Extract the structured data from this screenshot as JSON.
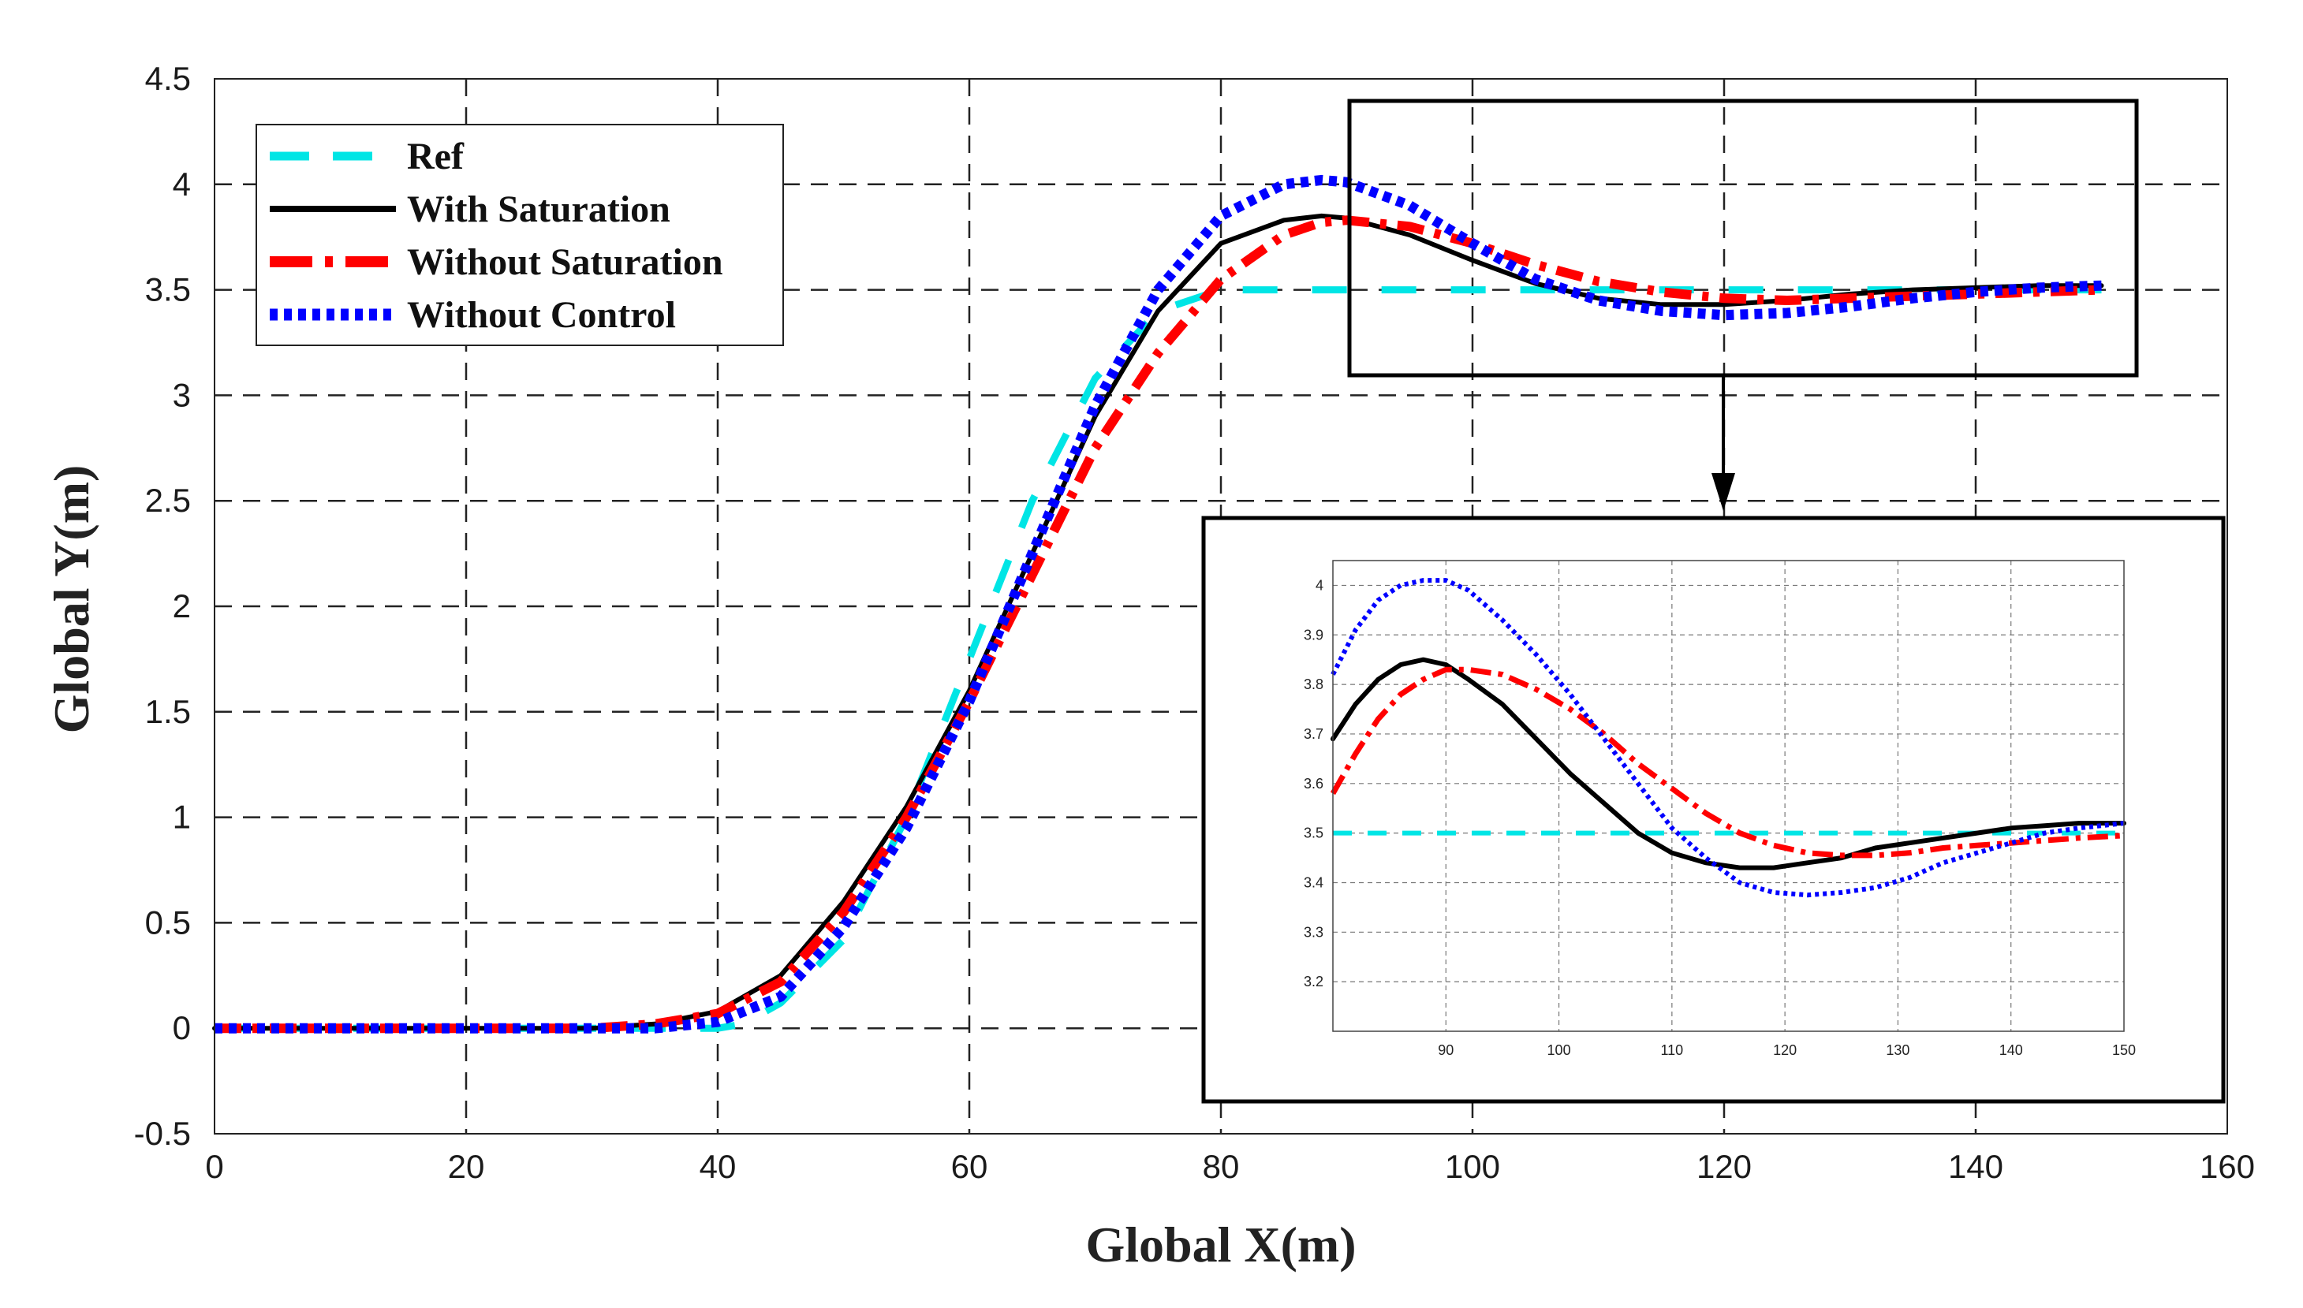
{
  "chart_data": [
    {
      "type": "line",
      "title": "",
      "xlabel": "Global X(m)",
      "ylabel": "Global Y(m)",
      "xlim": [
        0,
        160
      ],
      "ylim": [
        -0.5,
        4.5
      ],
      "xticks": [
        0,
        20,
        40,
        60,
        80,
        100,
        120,
        140,
        160
      ],
      "yticks": [
        -0.5,
        0,
        0.5,
        1,
        1.5,
        2,
        2.5,
        3,
        3.5,
        4,
        4.5
      ],
      "xtick_labels": [
        "0",
        "20",
        "40",
        "60",
        "80",
        "100",
        "120",
        "140",
        "160"
      ],
      "ytick_labels": [
        "-0.5",
        "0",
        "0.5",
        "1",
        "1.5",
        "2",
        "2.5",
        "3",
        "3.5",
        "4",
        "4.5"
      ],
      "grid": true,
      "legend_position": "top-left",
      "series": [
        {
          "name": "Ref",
          "color": "#00e5e5",
          "style": "dashed",
          "x": [
            0,
            10,
            20,
            30,
            35,
            40,
            42,
            45,
            50,
            55,
            60,
            65,
            70,
            75,
            80,
            85,
            90,
            100,
            110,
            120,
            130,
            140,
            150
          ],
          "y": [
            0,
            0,
            0,
            0,
            0,
            0,
            0.02,
            0.12,
            0.42,
            1.0,
            1.75,
            2.5,
            3.08,
            3.4,
            3.5,
            3.5,
            3.5,
            3.5,
            3.5,
            3.5,
            3.5,
            3.5,
            3.5
          ]
        },
        {
          "name": "With Saturation",
          "color": "#000000",
          "style": "solid",
          "x": [
            0,
            10,
            20,
            30,
            35,
            40,
            45,
            50,
            55,
            60,
            65,
            70,
            75,
            80,
            85,
            88,
            90,
            95,
            100,
            105,
            110,
            115,
            120,
            125,
            130,
            135,
            140,
            145,
            150
          ],
          "y": [
            0,
            0,
            0,
            0,
            0.02,
            0.08,
            0.25,
            0.6,
            1.05,
            1.6,
            2.25,
            2.9,
            3.4,
            3.72,
            3.83,
            3.85,
            3.84,
            3.76,
            3.64,
            3.53,
            3.46,
            3.43,
            3.43,
            3.45,
            3.48,
            3.5,
            3.51,
            3.52,
            3.52
          ]
        },
        {
          "name": "Without Saturation",
          "color": "#ff0000",
          "style": "dashdot",
          "x": [
            0,
            10,
            20,
            30,
            35,
            40,
            45,
            50,
            55,
            60,
            65,
            70,
            75,
            80,
            85,
            88,
            90,
            95,
            100,
            105,
            110,
            115,
            120,
            125,
            130,
            135,
            140,
            145,
            150
          ],
          "y": [
            0,
            0,
            0,
            0,
            0.02,
            0.07,
            0.22,
            0.55,
            1.0,
            1.55,
            2.15,
            2.75,
            3.2,
            3.55,
            3.76,
            3.82,
            3.83,
            3.8,
            3.72,
            3.62,
            3.54,
            3.49,
            3.46,
            3.45,
            3.46,
            3.47,
            3.48,
            3.49,
            3.5
          ]
        },
        {
          "name": "Without Control",
          "color": "#0000ff",
          "style": "dotted",
          "x": [
            0,
            10,
            20,
            30,
            35,
            40,
            45,
            50,
            55,
            60,
            65,
            70,
            75,
            80,
            85,
            88,
            90,
            95,
            100,
            105,
            110,
            115,
            120,
            125,
            130,
            135,
            140,
            145,
            150
          ],
          "y": [
            0,
            0,
            0,
            0,
            0,
            0.03,
            0.15,
            0.48,
            0.95,
            1.55,
            2.25,
            2.95,
            3.5,
            3.85,
            4.0,
            4.02,
            4.01,
            3.9,
            3.72,
            3.55,
            3.45,
            3.4,
            3.38,
            3.39,
            3.42,
            3.46,
            3.49,
            3.51,
            3.52
          ]
        }
      ]
    },
    {
      "type": "line",
      "title": "",
      "xlabel": "",
      "ylabel": "",
      "xlim": [
        80,
        150
      ],
      "ylim": [
        3.1,
        4.05
      ],
      "xticks": [
        90,
        100,
        110,
        120,
        130,
        140,
        150
      ],
      "yticks": [
        3.2,
        3.3,
        3.4,
        3.5,
        3.6,
        3.7,
        3.8,
        3.9,
        4.0
      ],
      "xtick_labels": [
        "90",
        "100",
        "110",
        "120",
        "130",
        "140",
        "150"
      ],
      "ytick_labels": [
        "3.2",
        "3.3",
        "3.4",
        "3.5",
        "3.6",
        "3.7",
        "3.8",
        "3.9",
        "4"
      ],
      "grid": true,
      "series": [
        {
          "name": "Ref",
          "color": "#00e5e5",
          "style": "dashed",
          "x": [
            80,
            150
          ],
          "y": [
            3.5,
            3.5
          ]
        },
        {
          "name": "With Saturation",
          "color": "#000000",
          "style": "solid",
          "x": [
            80,
            82,
            84,
            86,
            88,
            90,
            92,
            95,
            98,
            101,
            104,
            107,
            110,
            113,
            116,
            119,
            122,
            125,
            128,
            131,
            134,
            137,
            140,
            143,
            146,
            150
          ],
          "y": [
            3.69,
            3.76,
            3.81,
            3.84,
            3.85,
            3.84,
            3.81,
            3.76,
            3.69,
            3.62,
            3.56,
            3.5,
            3.46,
            3.44,
            3.43,
            3.43,
            3.44,
            3.45,
            3.47,
            3.48,
            3.49,
            3.5,
            3.51,
            3.515,
            3.52,
            3.52
          ]
        },
        {
          "name": "Without Saturation",
          "color": "#ff0000",
          "style": "dashdot",
          "x": [
            80,
            82,
            84,
            86,
            88,
            90,
            92,
            95,
            98,
            101,
            104,
            107,
            110,
            113,
            116,
            119,
            122,
            125,
            128,
            131,
            134,
            137,
            140,
            143,
            146,
            150
          ],
          "y": [
            3.58,
            3.66,
            3.73,
            3.78,
            3.81,
            3.83,
            3.83,
            3.82,
            3.79,
            3.75,
            3.7,
            3.64,
            3.59,
            3.54,
            3.5,
            3.475,
            3.46,
            3.455,
            3.455,
            3.46,
            3.47,
            3.475,
            3.48,
            3.485,
            3.49,
            3.495
          ]
        },
        {
          "name": "Without Control",
          "color": "#0000ff",
          "style": "dotted",
          "x": [
            80,
            82,
            84,
            86,
            88,
            90,
            92,
            95,
            98,
            101,
            104,
            107,
            110,
            113,
            116,
            119,
            122,
            125,
            128,
            131,
            134,
            137,
            140,
            143,
            146,
            150
          ],
          "y": [
            3.82,
            3.91,
            3.97,
            4.0,
            4.01,
            4.01,
            3.99,
            3.93,
            3.86,
            3.78,
            3.69,
            3.6,
            3.51,
            3.45,
            3.4,
            3.38,
            3.375,
            3.38,
            3.39,
            3.41,
            3.44,
            3.46,
            3.48,
            3.5,
            3.51,
            3.52
          ]
        }
      ]
    }
  ]
}
